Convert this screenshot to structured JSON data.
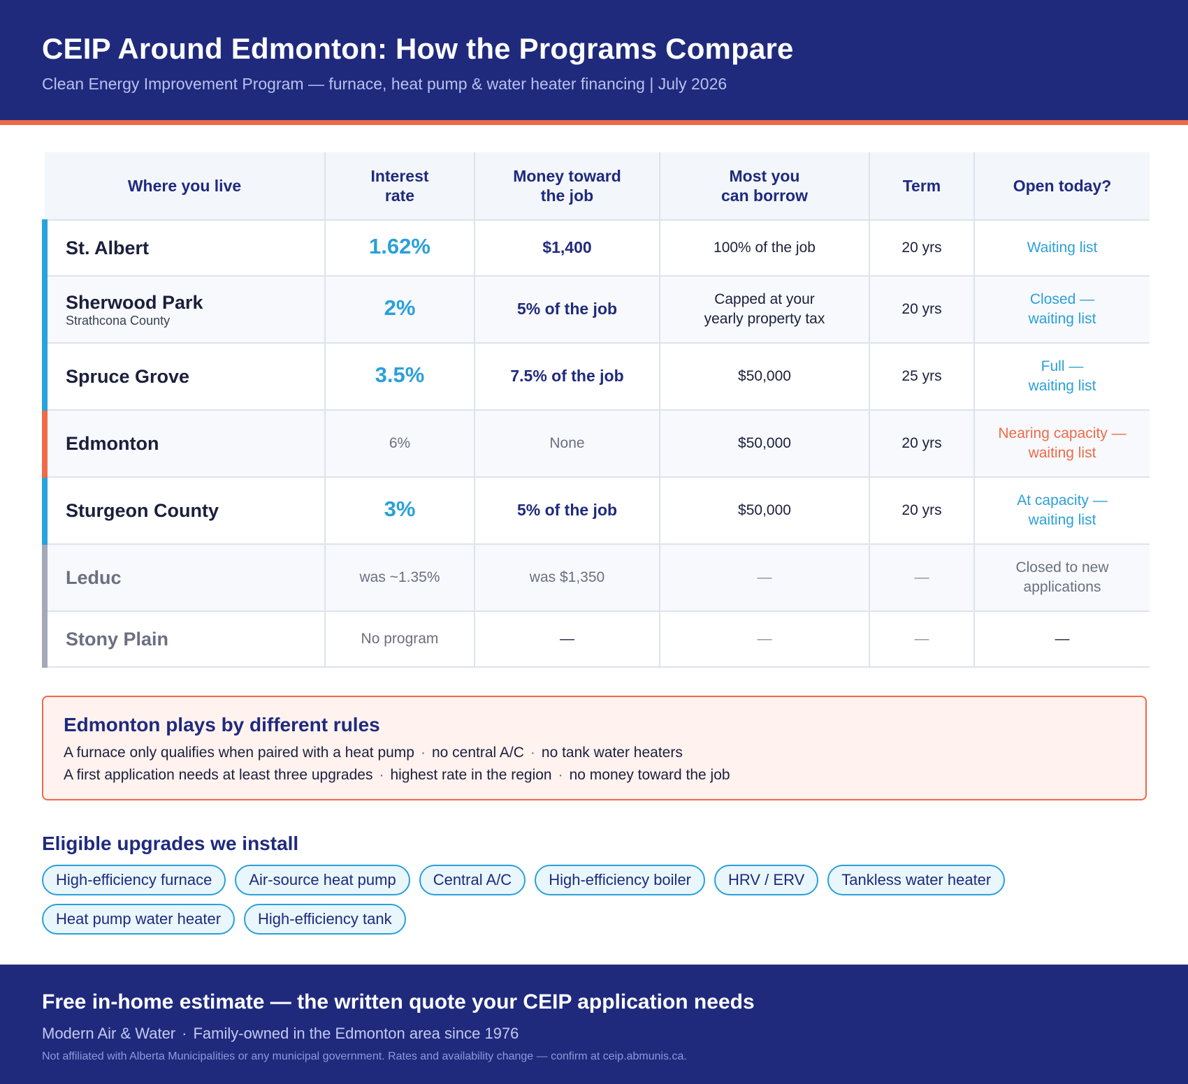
{
  "header": {
    "title": "CEIP Around Edmonton: How the Programs Compare",
    "subtitle": "Clean Energy Improvement Program — furnace, heat pump & water heater financing  |  July 2026"
  },
  "table": {
    "columns": {
      "location": "Where you live",
      "rate": "Interest rate",
      "money": "Money toward the job",
      "borrow": "Most you can borrow",
      "term": "Term",
      "open": "Open today?"
    },
    "rows": [
      {
        "name": "St. Albert",
        "sub": "",
        "rate": "1.62%",
        "money": "$1,400",
        "borrow": "100% of the job",
        "term": "20 yrs",
        "open": "Waiting list"
      },
      {
        "name": "Sherwood Park",
        "sub": "Strathcona County",
        "rate": "2%",
        "money": "5% of the job",
        "borrow": "Capped at your yearly property tax",
        "term": "20 yrs",
        "open": "Closed — waiting list"
      },
      {
        "name": "Spruce Grove",
        "sub": "",
        "rate": "3.5%",
        "money": "7.5% of the job",
        "borrow": "$50,000",
        "term": "25 yrs",
        "open": "Full — waiting list"
      },
      {
        "name": "Edmonton",
        "sub": "",
        "rate": "6%",
        "money": "None",
        "borrow": "$50,000",
        "term": "20 yrs",
        "open": "Nearing capacity — waiting list"
      },
      {
        "name": "Sturgeon County",
        "sub": "",
        "rate": "3%",
        "money": "5% of the job",
        "borrow": "$50,000",
        "term": "20 yrs",
        "open": "At capacity — waiting list"
      },
      {
        "name": "Leduc",
        "sub": "",
        "rate": "was ~1.35%",
        "money": "was $1,350",
        "borrow": "—",
        "term": "—",
        "open": "Closed to new applications"
      },
      {
        "name": "Stony Plain",
        "sub": "",
        "rate": "No program",
        "money": "—",
        "borrow": "—",
        "term": "—",
        "open": "—"
      }
    ]
  },
  "rules": {
    "title": "Edmonton plays by different rules",
    "line1": [
      "A furnace only qualifies when paired with a heat pump",
      "no central A/C",
      "no tank water heaters"
    ],
    "line2": [
      "A first application needs at least three upgrades",
      "highest rate in the region",
      "no money toward the job"
    ],
    "separator": "·"
  },
  "upgrades": {
    "title": "Eligible upgrades we install",
    "items": [
      "High-efficiency furnace",
      "Air-source heat pump",
      "Central A/C",
      "High-efficiency boiler",
      "HRV / ERV",
      "Tankless water heater",
      "Heat pump water heater",
      "High-efficiency tank"
    ]
  },
  "footer": {
    "title": "Free in-home estimate — the written quote your CEIP application needs",
    "company": "Modern Air & Water",
    "tagline": "Family-owned in the Edmonton area since 1976",
    "separator": "·",
    "disclaimer": "Not affiliated with Alberta Municipalities or any municipal government. Rates and availability change — confirm at ceip.abmunis.ca."
  },
  "colors": {
    "navy": "#1f2a7d",
    "accent_orange": "#ef6a47",
    "accent_blue": "#2aa0d9",
    "muted_gray": "#6b6f80"
  }
}
